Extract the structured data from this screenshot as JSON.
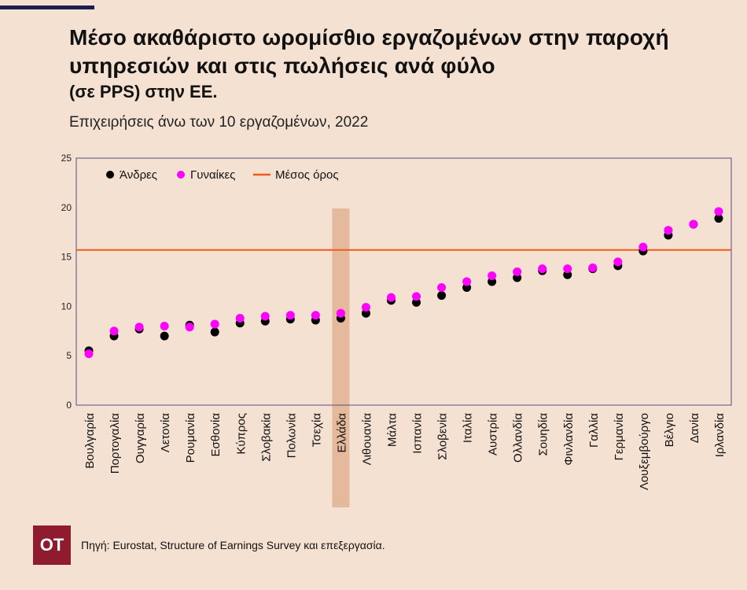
{
  "header": {
    "title": "Μέσο ακαθάριστο ωρομίσθιο εργαζομένων στην παροχή υπηρεσιών και στις πωλήσεις ανά φύλο",
    "title_unit": "(σε PPS) στην ΕΕ.",
    "subtitle": "Επιχειρήσεις άνω των 10 εργαζομένων, 2022"
  },
  "footer": {
    "logo_text": "OT",
    "source": "Πηγή: Eurostat, Structure of Earnings Survey και επεξεργασία."
  },
  "chart_data": {
    "type": "scatter",
    "categories": [
      "Βουλγαρία",
      "Πορτογαλία",
      "Ουγγαρία",
      "Λετονία",
      "Ρουμανία",
      "Εσθονία",
      "Κύπρος",
      "Σλοβακία",
      "Πολωνία",
      "Τσεχία",
      "Ελλάδα",
      "Λιθουανία",
      "Μάλτα",
      "Ισπανία",
      "Σλοβενία",
      "Ιταλία",
      "Αυστρία",
      "Ολλανδία",
      "Σουηδία",
      "Φινλανδία",
      "Γαλλία",
      "Γερμανία",
      "Λουξεμβούργο",
      "Βέλγιο",
      "Δανία",
      "Ιρλανδία"
    ],
    "series": [
      {
        "name": "Άνδρες",
        "color": "#000000",
        "values": [
          5.5,
          7.0,
          7.7,
          7.0,
          8.1,
          7.4,
          8.3,
          8.5,
          8.7,
          8.6,
          8.8,
          9.3,
          10.6,
          10.4,
          11.1,
          11.9,
          12.5,
          12.9,
          13.6,
          13.2,
          13.8,
          14.1,
          15.6,
          17.2,
          18.3,
          18.9
        ]
      },
      {
        "name": "Γυναίκες",
        "color": "#ff00ff",
        "values": [
          5.2,
          7.5,
          7.9,
          8.0,
          7.9,
          8.2,
          8.8,
          9.0,
          9.1,
          9.1,
          9.3,
          9.9,
          10.9,
          11.0,
          11.9,
          12.5,
          13.1,
          13.5,
          13.8,
          13.8,
          13.9,
          14.5,
          16.0,
          17.7,
          18.3,
          19.6
        ]
      }
    ],
    "reference_line": {
      "name": "Μέσος όρος",
      "value": 15.7,
      "color": "#f05a1a"
    },
    "highlight_category": "Ελλάδα",
    "highlight_color": "#e3b596",
    "y_ticks": [
      0,
      5,
      10,
      15,
      20,
      25
    ],
    "ylim": [
      0,
      25
    ],
    "legend_position": "top-left",
    "grid": false
  }
}
